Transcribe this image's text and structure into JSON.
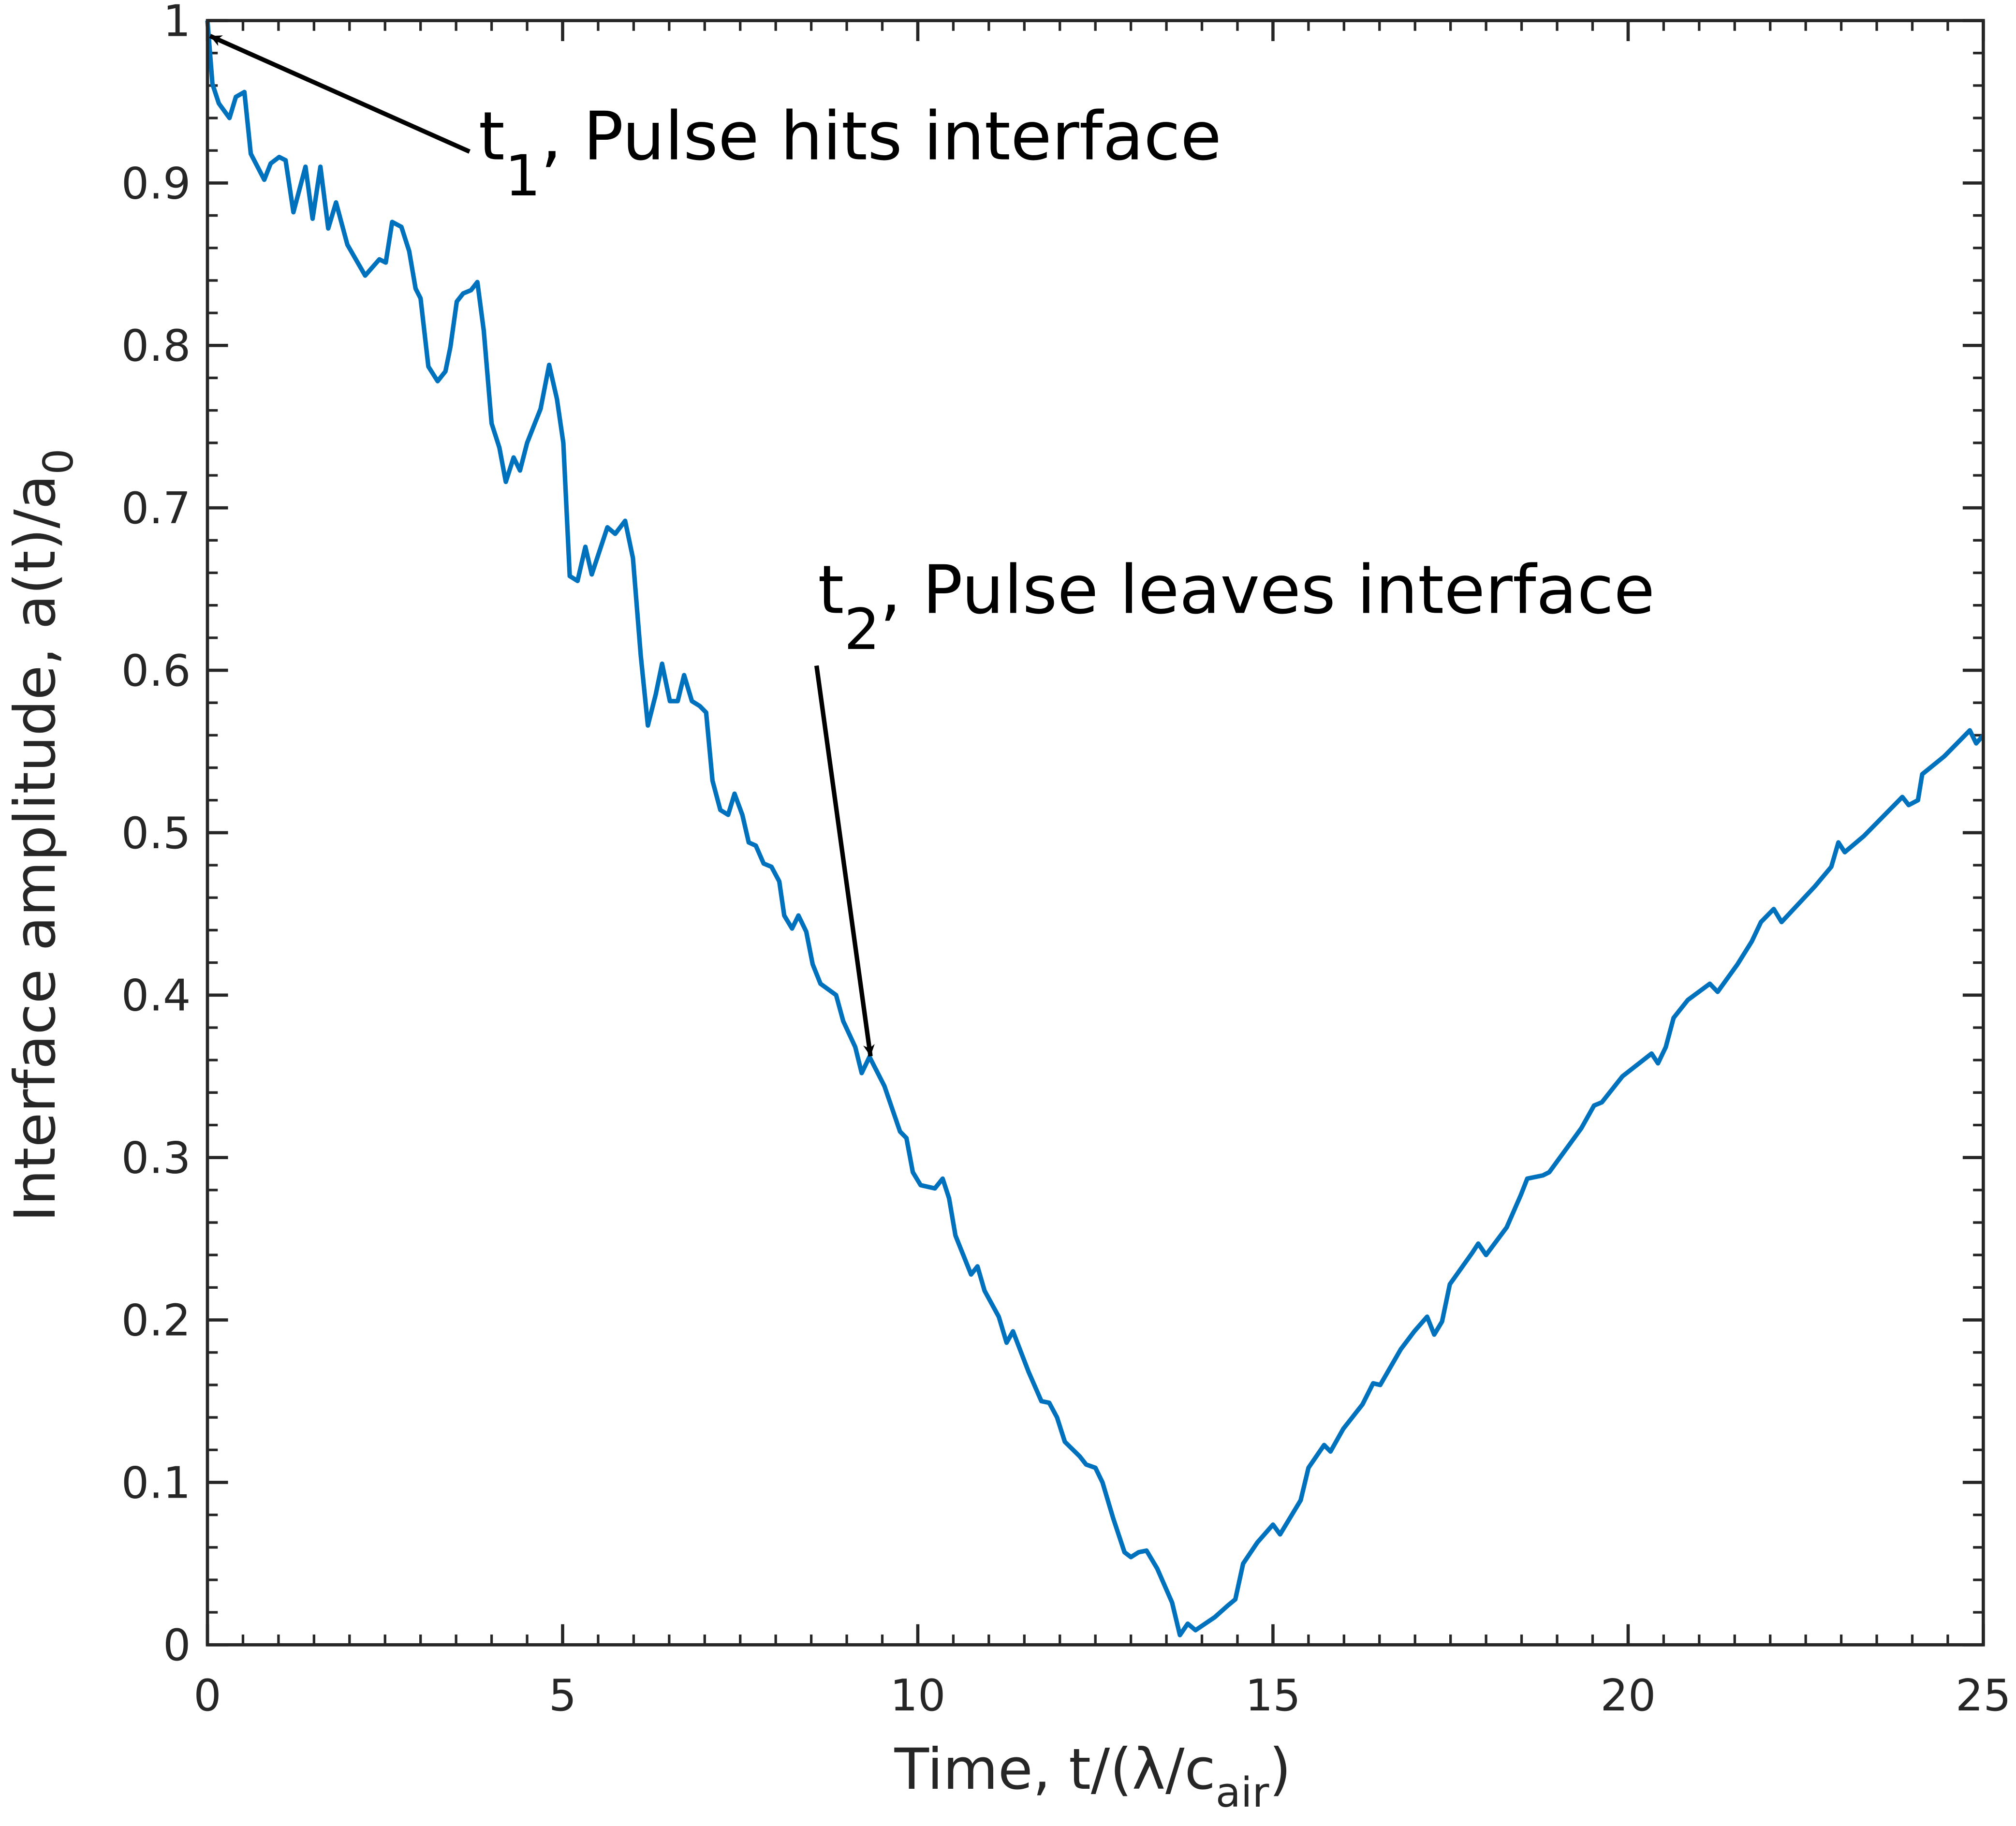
{
  "chart_data": {
    "type": "line",
    "color": "#0072bd",
    "xlabel": {
      "text": "Time, t/(λ/c",
      "sub": "air",
      "tail": ")"
    },
    "ylabel": {
      "text": "Interface amplitude, a(t)/a",
      "sub": "0"
    },
    "annotations": [
      {
        "text": "t",
        "sub": "1",
        "tail": ", Pulse hits interface"
      },
      {
        "text": "t",
        "sub": "2",
        "tail": ", Pulse leaves interface"
      }
    ],
    "xlim": [
      0,
      25
    ],
    "ylim": [
      0,
      1
    ],
    "xticks": [
      0,
      5,
      10,
      15,
      20,
      25
    ],
    "yticks": [
      0,
      0.1,
      0.2,
      0.3,
      0.4,
      0.5,
      0.6,
      0.7,
      0.8,
      0.9,
      1
    ],
    "x": [
      0,
      0.07,
      0.16,
      0.31,
      0.4,
      0.52,
      0.61,
      0.8,
      0.89,
      1.01,
      1.1,
      1.21,
      1.38,
      1.48,
      1.59,
      1.7,
      1.81,
      1.97,
      2.22,
      2.42,
      2.51,
      2.6,
      2.73,
      2.84,
      2.93,
      3.0,
      3.11,
      3.24,
      3.35,
      3.42,
      3.51,
      3.6,
      3.71,
      3.8,
      3.89,
      4.0,
      4.11,
      4.2,
      4.31,
      4.4,
      4.5,
      4.69,
      4.81,
      4.92,
      5.01,
      5.1,
      5.21,
      5.32,
      5.41,
      5.63,
      5.74,
      5.88,
      5.99,
      6.1,
      6.2,
      6.31,
      6.4,
      6.51,
      6.62,
      6.71,
      6.82,
      6.93,
      7.02,
      7.11,
      7.22,
      7.33,
      7.42,
      7.53,
      7.62,
      7.72,
      7.83,
      7.94,
      8.05,
      8.12,
      8.23,
      8.32,
      8.43,
      8.52,
      8.63,
      8.85,
      8.95,
      9.12,
      9.21,
      9.32,
      9.53,
      9.75,
      9.84,
      9.93,
      10.04,
      10.24,
      10.35,
      10.44,
      10.53,
      10.75,
      10.84,
      10.94,
      11.14,
      11.25,
      11.34,
      11.56,
      11.74,
      11.85,
      11.96,
      12.07,
      12.28,
      12.37,
      12.5,
      12.6,
      12.75,
      12.91,
      13.0,
      13.11,
      13.22,
      13.37,
      13.58,
      13.69,
      13.8,
      13.91,
      14.18,
      14.36,
      14.47,
      14.58,
      14.78,
      15.0,
      15.1,
      15.39,
      15.5,
      15.72,
      15.81,
      15.99,
      16.26,
      16.41,
      16.51,
      16.8,
      16.99,
      17.17,
      17.27,
      17.38,
      17.49,
      17.8,
      17.89,
      18.0,
      18.29,
      18.49,
      18.58,
      18.8,
      18.89,
      19.34,
      19.52,
      19.63,
      19.92,
      20.33,
      20.42,
      20.53,
      20.64,
      20.84,
      21.15,
      21.26,
      21.54,
      21.74,
      21.87,
      22.05,
      22.16,
      22.63,
      22.86,
      22.96,
      23.05,
      23.32,
      23.86,
      23.95,
      24.08,
      24.14,
      24.45,
      24.81,
      24.9,
      25.0
    ],
    "values": [
      1.0,
      0.961,
      0.949,
      0.94,
      0.953,
      0.956,
      0.918,
      0.902,
      0.912,
      0.916,
      0.914,
      0.882,
      0.91,
      0.878,
      0.91,
      0.872,
      0.888,
      0.862,
      0.843,
      0.853,
      0.851,
      0.876,
      0.873,
      0.858,
      0.835,
      0.829,
      0.787,
      0.778,
      0.784,
      0.799,
      0.827,
      0.832,
      0.834,
      0.839,
      0.809,
      0.752,
      0.737,
      0.716,
      0.731,
      0.723,
      0.74,
      0.761,
      0.788,
      0.767,
      0.74,
      0.658,
      0.655,
      0.676,
      0.659,
      0.688,
      0.684,
      0.692,
      0.669,
      0.609,
      0.566,
      0.585,
      0.604,
      0.581,
      0.581,
      0.597,
      0.581,
      0.578,
      0.574,
      0.532,
      0.514,
      0.511,
      0.524,
      0.511,
      0.494,
      0.492,
      0.481,
      0.479,
      0.47,
      0.449,
      0.441,
      0.449,
      0.439,
      0.419,
      0.407,
      0.4,
      0.384,
      0.368,
      0.352,
      0.362,
      0.344,
      0.316,
      0.312,
      0.291,
      0.283,
      0.281,
      0.287,
      0.275,
      0.252,
      0.228,
      0.233,
      0.218,
      0.202,
      0.186,
      0.193,
      0.168,
      0.15,
      0.149,
      0.14,
      0.125,
      0.116,
      0.111,
      0.109,
      0.1,
      0.078,
      0.057,
      0.054,
      0.057,
      0.058,
      0.047,
      0.026,
      0.006,
      0.013,
      0.009,
      0.017,
      0.024,
      0.028,
      0.05,
      0.063,
      0.074,
      0.068,
      0.089,
      0.109,
      0.123,
      0.119,
      0.133,
      0.148,
      0.161,
      0.16,
      0.182,
      0.193,
      0.202,
      0.191,
      0.199,
      0.222,
      0.241,
      0.247,
      0.24,
      0.257,
      0.277,
      0.287,
      0.289,
      0.291,
      0.318,
      0.332,
      0.334,
      0.35,
      0.364,
      0.358,
      0.368,
      0.386,
      0.397,
      0.407,
      0.402,
      0.419,
      0.433,
      0.445,
      0.453,
      0.445,
      0.467,
      0.479,
      0.494,
      0.488,
      0.498,
      0.522,
      0.517,
      0.52,
      0.536,
      0.547,
      0.563,
      0.555,
      0.56
    ]
  }
}
